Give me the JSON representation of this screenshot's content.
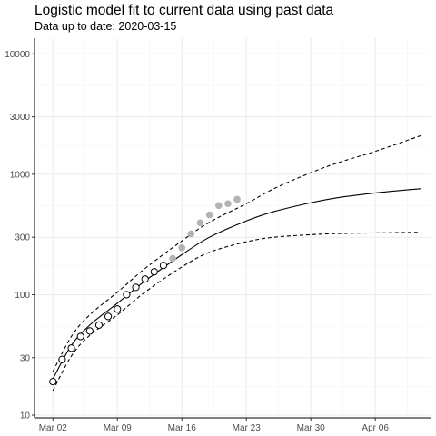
{
  "chart_data": {
    "type": "scatter",
    "title": "Logistic model fit to current data using past data",
    "subtitle": "Data up to date: 2020-03-15",
    "xlabel": "",
    "ylabel": "",
    "y_scale": "log10",
    "x_axis": {
      "type": "date",
      "range": [
        "2020-02-29",
        "2020-04-12"
      ],
      "tick_dates": [
        "2020-03-02",
        "2020-03-09",
        "2020-03-16",
        "2020-03-23",
        "2020-03-30",
        "2020-04-06"
      ],
      "tick_labels": [
        "Mar 02",
        "Mar 09",
        "Mar 16",
        "Mar 23",
        "Mar 30",
        "Apr 06"
      ]
    },
    "y_axis": {
      "range": [
        9.5,
        13500
      ],
      "ticks": [
        10,
        30,
        100,
        300,
        1000,
        3000,
        10000
      ],
      "tick_labels": [
        "10",
        "30",
        "100",
        "300",
        "1000",
        "3000",
        "10000"
      ]
    },
    "grid": true,
    "legend": "none",
    "colors": {
      "fit_line": "#000000",
      "observed_point_fill": "#ffffff",
      "observed_point_stroke": "#000000",
      "future_point": "#b3b3b3",
      "grid": "#ebebeb"
    },
    "series": [
      {
        "role": "fitted data points",
        "style": "hollow-circle",
        "points": [
          {
            "x": "2020-03-02",
            "y": 19
          },
          {
            "x": "2020-03-03",
            "y": 29
          },
          {
            "x": "2020-03-04",
            "y": 36
          },
          {
            "x": "2020-03-05",
            "y": 45
          },
          {
            "x": "2020-03-06",
            "y": 50
          },
          {
            "x": "2020-03-07",
            "y": 56
          },
          {
            "x": "2020-03-08",
            "y": 66
          },
          {
            "x": "2020-03-09",
            "y": 76
          },
          {
            "x": "2020-03-10",
            "y": 100
          },
          {
            "x": "2020-03-11",
            "y": 115
          },
          {
            "x": "2020-03-12",
            "y": 135
          },
          {
            "x": "2020-03-13",
            "y": 155
          },
          {
            "x": "2020-03-14",
            "y": 175
          }
        ]
      },
      {
        "role": "subsequent data points",
        "style": "filled-grey-circle",
        "points": [
          {
            "x": "2020-03-15",
            "y": 200
          },
          {
            "x": "2020-03-16",
            "y": 245
          },
          {
            "x": "2020-03-17",
            "y": 320
          },
          {
            "x": "2020-03-18",
            "y": 395
          },
          {
            "x": "2020-03-19",
            "y": 460
          },
          {
            "x": "2020-03-20",
            "y": 550
          },
          {
            "x": "2020-03-21",
            "y": 570
          },
          {
            "x": "2020-03-22",
            "y": 620
          }
        ]
      },
      {
        "role": "logistic fit",
        "style": "solid",
        "points": [
          {
            "x": "2020-03-02",
            "y": 20
          },
          {
            "x": "2020-03-04",
            "y": 38
          },
          {
            "x": "2020-03-06",
            "y": 56
          },
          {
            "x": "2020-03-09",
            "y": 85
          },
          {
            "x": "2020-03-12",
            "y": 130
          },
          {
            "x": "2020-03-16",
            "y": 215
          },
          {
            "x": "2020-03-19",
            "y": 300
          },
          {
            "x": "2020-03-23",
            "y": 410
          },
          {
            "x": "2020-03-26",
            "y": 490
          },
          {
            "x": "2020-03-30",
            "y": 580
          },
          {
            "x": "2020-04-02",
            "y": 640
          },
          {
            "x": "2020-04-06",
            "y": 700
          },
          {
            "x": "2020-04-11",
            "y": 760
          }
        ]
      },
      {
        "role": "upper bound",
        "style": "dashed",
        "points": [
          {
            "x": "2020-03-02",
            "y": 23
          },
          {
            "x": "2020-03-04",
            "y": 45
          },
          {
            "x": "2020-03-06",
            "y": 68
          },
          {
            "x": "2020-03-09",
            "y": 105
          },
          {
            "x": "2020-03-12",
            "y": 165
          },
          {
            "x": "2020-03-16",
            "y": 280
          },
          {
            "x": "2020-03-19",
            "y": 400
          },
          {
            "x": "2020-03-23",
            "y": 570
          },
          {
            "x": "2020-03-26",
            "y": 760
          },
          {
            "x": "2020-03-30",
            "y": 1030
          },
          {
            "x": "2020-04-02",
            "y": 1250
          },
          {
            "x": "2020-04-06",
            "y": 1550
          },
          {
            "x": "2020-04-11",
            "y": 2100
          }
        ]
      },
      {
        "role": "lower bound",
        "style": "dashed",
        "points": [
          {
            "x": "2020-03-02",
            "y": 16
          },
          {
            "x": "2020-03-04",
            "y": 31
          },
          {
            "x": "2020-03-06",
            "y": 46
          },
          {
            "x": "2020-03-09",
            "y": 68
          },
          {
            "x": "2020-03-12",
            "y": 105
          },
          {
            "x": "2020-03-16",
            "y": 170
          },
          {
            "x": "2020-03-19",
            "y": 225
          },
          {
            "x": "2020-03-23",
            "y": 275
          },
          {
            "x": "2020-03-26",
            "y": 300
          },
          {
            "x": "2020-03-30",
            "y": 315
          },
          {
            "x": "2020-04-02",
            "y": 322
          },
          {
            "x": "2020-04-06",
            "y": 326
          },
          {
            "x": "2020-04-11",
            "y": 330
          }
        ]
      }
    ]
  }
}
